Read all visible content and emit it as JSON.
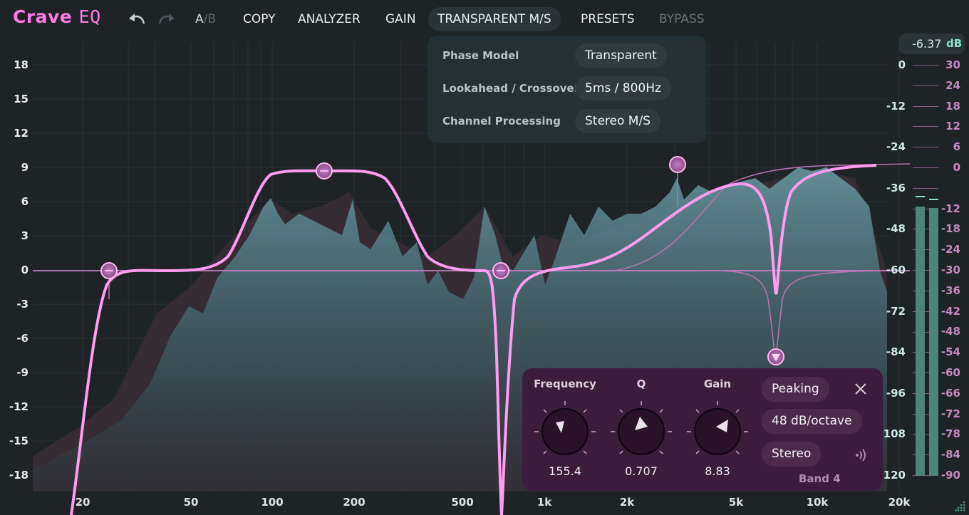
{
  "app": {
    "logo_word": "Crave",
    "logo_eq": "EQ",
    "brand_color": "#ff7be6"
  },
  "toolbar": {
    "a_label": "A",
    "separator": "/",
    "b_label": "B",
    "copy": "COPY",
    "analyzer": "ANALYZER",
    "gain": "GAIN",
    "transparent_ms": "TRANSPARENT M/S",
    "presets": "PRESETS",
    "bypass": "BYPASS"
  },
  "ms_menu": {
    "rows": [
      {
        "label": "Phase Model",
        "value": "Transparent"
      },
      {
        "label": "Lookahead / Crossover",
        "value": "5ms / 800Hz"
      },
      {
        "label": "Channel Processing",
        "value": "Stereo M/S"
      }
    ]
  },
  "output_readout": {
    "value": "-6.37",
    "unit": "dB"
  },
  "eq_scale": [
    "18",
    "15",
    "12",
    "9",
    "6",
    "3",
    "0",
    "-3",
    "-6",
    "-9",
    "-12",
    "-15",
    "-18"
  ],
  "analyzer_scale": [
    "0",
    "-12",
    "-24",
    "-36",
    "-48",
    "-60",
    "-72",
    "-84",
    "-96",
    "-108",
    "-120"
  ],
  "meter_scale": [
    "30",
    "24",
    "18",
    "12",
    "6",
    "0",
    "-12",
    "-18",
    "-24",
    "-30",
    "-36",
    "-42",
    "-48",
    "-54",
    "-60",
    "-66",
    "-72",
    "-78",
    "-84",
    "-90"
  ],
  "freq_labels": [
    "20",
    "50",
    "100",
    "200",
    "500",
    "1k",
    "2k",
    "5k",
    "10k",
    "20k"
  ],
  "band_panel": {
    "frequency_label": "Frequency",
    "frequency_value": "155.4",
    "q_label": "Q",
    "q_value": "0.707",
    "gain_label": "Gain",
    "gain_value": "8.83",
    "type": "Peaking",
    "slope": "48 dB/octave",
    "channel": "Stereo",
    "band_name": "Band 4"
  },
  "colors": {
    "curve": "#ff9cf0",
    "spectrum": "#5d8f97",
    "meter": "#4c8478"
  }
}
